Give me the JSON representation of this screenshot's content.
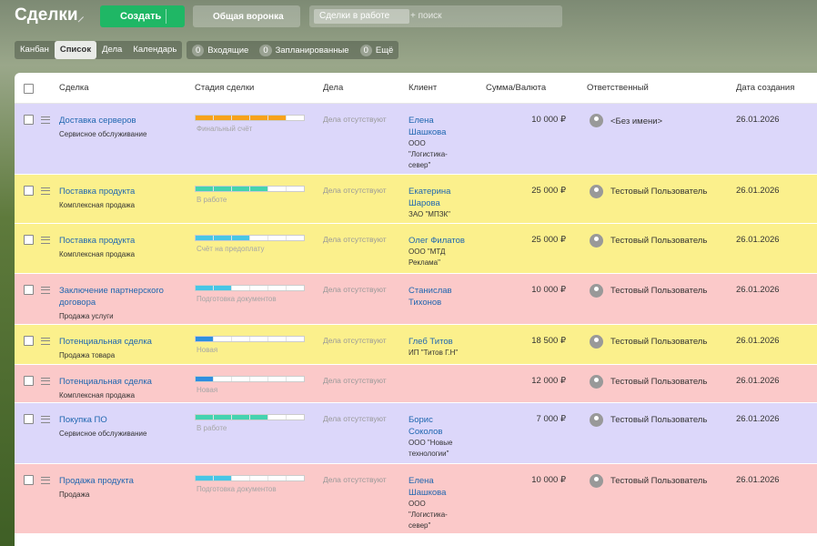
{
  "header": {
    "title": "Сделки",
    "create": "Создать",
    "funnel": "Общая воронка",
    "filter_tag": "Сделки в работе",
    "search_placeholder": "+ поиск"
  },
  "views": [
    "Канбан",
    "Список",
    "Дела",
    "Календарь"
  ],
  "active_view": 1,
  "counters": [
    {
      "count": "0",
      "label": "Входящие"
    },
    {
      "count": "0",
      "label": "Запланированные"
    },
    {
      "count": "0",
      "label": "Ещё"
    }
  ],
  "table": {
    "columns": [
      "Сделка",
      "Стадия сделки",
      "Дела",
      "Клиент",
      "Сумма/Валюта",
      "Ответственный",
      "Дата создания"
    ],
    "stage_steps": 6,
    "rows": [
      {
        "name": "Доставка серверов",
        "type": "Сервисное обслуживание",
        "stage": "Финальный счёт",
        "stage_step": 5,
        "stage_color": "#f7a21b",
        "activities": "Дела отсутствуют",
        "client_name": "Елена Шашкова",
        "client_company": "ООО \"Логистика-север\"",
        "amount": "10 000 ₽",
        "responsible": "<Без имени>",
        "date": "26.01.2026",
        "color": "#dcd7fa"
      },
      {
        "name": "Поставка продукта",
        "type": "Комплексная продажа",
        "stage": "В работе",
        "stage_step": 4,
        "stage_color": "#44d3b0",
        "activities": "Дела отсутствуют",
        "client_name": "Екатерина Шарова",
        "client_company": "ЗАО \"МПЗК\"",
        "amount": "25 000 ₽",
        "responsible": "Тестовый Пользователь",
        "date": "26.01.2026",
        "color": "#fbf08c"
      },
      {
        "name": "Поставка продукта",
        "type": "Комплексная продажа",
        "stage": "Счёт на предоплату",
        "stage_step": 3,
        "stage_color": "#47c6e6",
        "activities": "Дела отсутствуют",
        "client_name": "Олег Филатов",
        "client_company": "ООО \"МТД Реклама\"",
        "amount": "25 000 ₽",
        "responsible": "Тестовый Пользователь",
        "date": "26.01.2026",
        "color": "#fbf08c"
      },
      {
        "name": "Заключение партнерского договора",
        "type": "Продажа услуги",
        "stage": "Подготовка документов",
        "stage_step": 2,
        "stage_color": "#47c6e6",
        "activities": "Дела отсутствуют",
        "client_name": "Станислав Тихонов",
        "amount": "10 000 ₽",
        "responsible": "Тестовый Пользователь",
        "date": "26.01.2026",
        "color": "#fbc9c9"
      },
      {
        "name": "Потенциальная сделка",
        "type": "Продажа товара",
        "stage": "Новая",
        "stage_step": 1,
        "stage_color": "#2f8fe0",
        "activities": "Дела отсутствуют",
        "client_name": "Глеб Титов",
        "client_company": "ИП \"Титов Г.Н\"",
        "amount": "18 500 ₽",
        "responsible": "Тестовый Пользователь",
        "date": "26.01.2026",
        "color": "#fbf08c"
      },
      {
        "name": "Потенциальная сделка",
        "type": "Комплексная продажа",
        "stage": "Новая",
        "stage_step": 1,
        "stage_color": "#2f8fe0",
        "activities": "Дела отсутствуют",
        "amount": "12 000 ₽",
        "responsible": "Тестовый Пользователь",
        "date": "26.01.2026",
        "color": "#fbc9c9"
      },
      {
        "name": "Покупка ПО",
        "type": "Сервисное обслуживание",
        "stage": "В работе",
        "stage_step": 4,
        "stage_color": "#44d3b0",
        "activities": "Дела отсутствуют",
        "client_name": "Борис Соколов",
        "client_company": "ООО \"Новые технологии\"",
        "amount": "7 000 ₽",
        "responsible": "Тестовый Пользователь",
        "date": "26.01.2026",
        "color": "#dcd7fa"
      },
      {
        "name": "Продажа продукта",
        "type": "Продажа",
        "stage": "Подготовка документов",
        "stage_step": 2,
        "stage_color": "#47c6e6",
        "activities": "Дела отсутствуют",
        "client_name": "Елена Шашкова",
        "client_company": "ООО \"Логистика-север\"",
        "amount": "10 000 ₽",
        "responsible": "Тестовый Пользователь",
        "date": "26.01.2026",
        "color": "#fbc9c9"
      }
    ]
  }
}
